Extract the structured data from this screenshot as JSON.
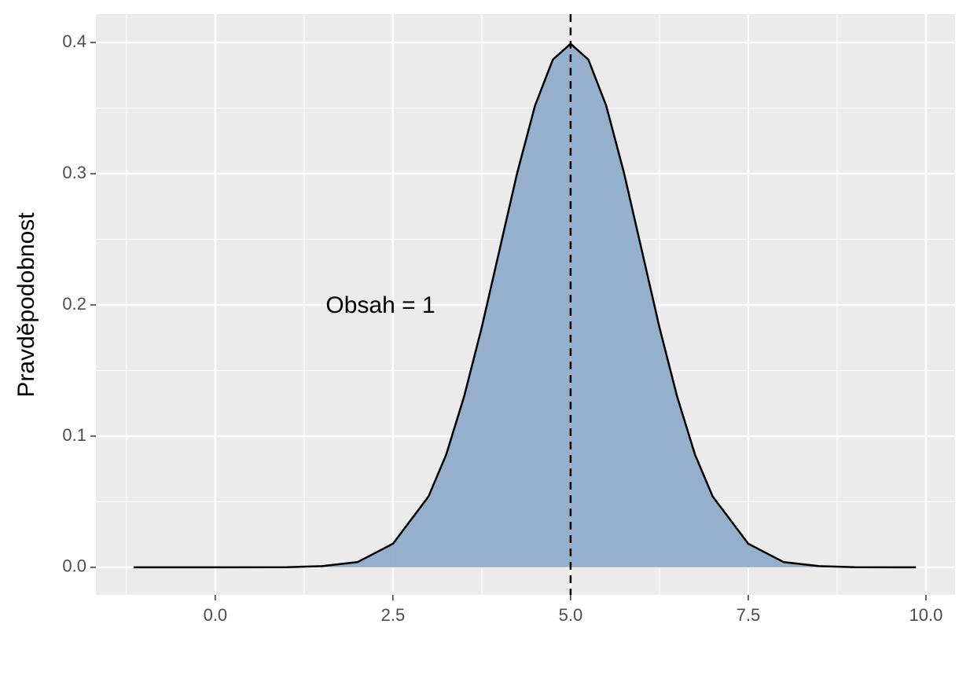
{
  "chart_data": {
    "type": "area",
    "y_label": "Pravděpodobnost",
    "annotation": "Obsah = 1",
    "x": [
      -1.15,
      0,
      1,
      1.5,
      2,
      2.5,
      3,
      3.25,
      3.5,
      3.75,
      4,
      4.25,
      4.5,
      4.75,
      5,
      5.25,
      5.5,
      5.75,
      6,
      6.25,
      6.5,
      6.75,
      7,
      7.5,
      8,
      8.5,
      9,
      9.86
    ],
    "values": [
      0,
      0,
      0.0001,
      0.0009,
      0.004,
      0.018,
      0.054,
      0.086,
      0.13,
      0.183,
      0.242,
      0.301,
      0.352,
      0.387,
      0.399,
      0.387,
      0.352,
      0.301,
      0.242,
      0.183,
      0.13,
      0.086,
      0.054,
      0.018,
      0.004,
      0.0009,
      0.0001,
      0
    ],
    "color": "#8fadca",
    "vline": 5,
    "xlim": [
      -1.68,
      10.41
    ],
    "ylim": [
      -0.021,
      0.4216
    ],
    "xticks": [
      {
        "value": 0,
        "label": "0.0"
      },
      2.5,
      {
        "value": 5,
        "label": "5.0"
      },
      7.5,
      {
        "value": 10,
        "label": "10.0"
      }
    ],
    "yticks": [
      {
        "value": 0,
        "label": "0.0"
      },
      0.1,
      0.2,
      0.3,
      0.4
    ],
    "grid": true
  }
}
